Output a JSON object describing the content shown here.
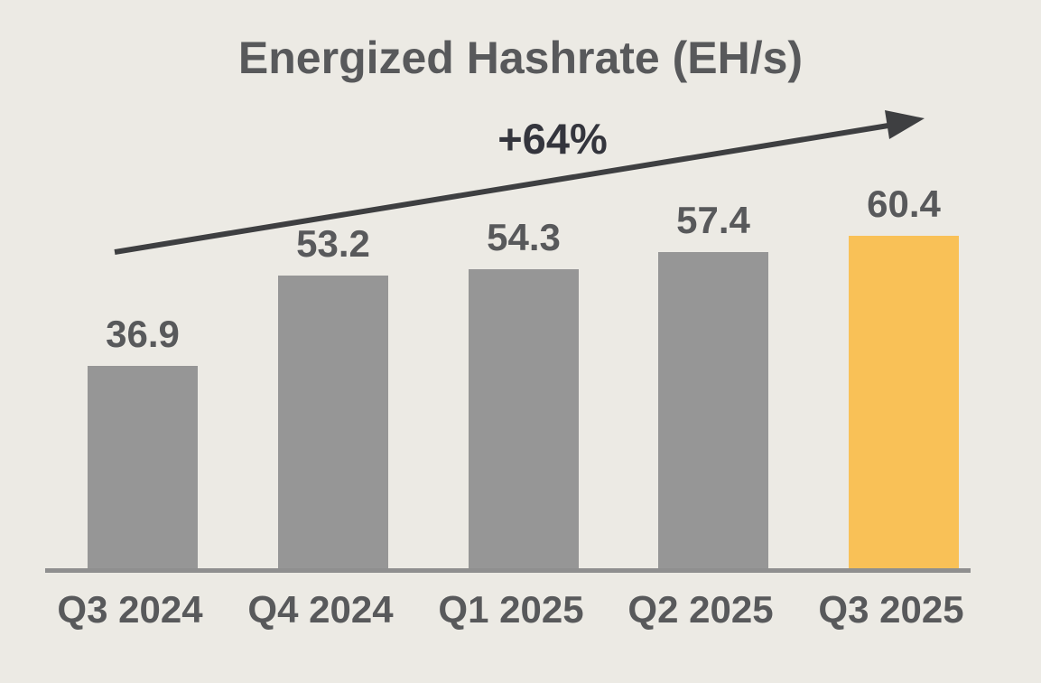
{
  "title": "Energized Hashrate (EH/s)",
  "annotation": {
    "growth_label": "+64%"
  },
  "colors": {
    "background": "#ECEAE4",
    "bar": "#969696",
    "bar_highlight": "#F9C157",
    "axis_line": "#8F8F8F",
    "title_text": "#58595B",
    "label_text": "#58595B",
    "annotation_text": "#34353D",
    "arrow": "#3E3F41"
  },
  "chart_data": {
    "type": "bar",
    "title": "Energized Hashrate (EH/s)",
    "categories": [
      "Q3 2024",
      "Q4 2024",
      "Q1 2025",
      "Q2 2025",
      "Q3 2025"
    ],
    "values": [
      36.9,
      53.2,
      54.3,
      57.4,
      60.4
    ],
    "value_labels": [
      "36.9",
      "53.2",
      "54.3",
      "57.4",
      "60.4"
    ],
    "highlighted_category": "Q3 2025",
    "annotations": [
      {
        "text": "+64%",
        "type": "growth-arrow",
        "from_category": "Q3 2024",
        "to_category": "Q3 2025"
      }
    ],
    "xlabel": "",
    "ylabel": "",
    "ylim": [
      0,
      65
    ],
    "grid": false,
    "legend": false,
    "axis": "bottom-only"
  }
}
